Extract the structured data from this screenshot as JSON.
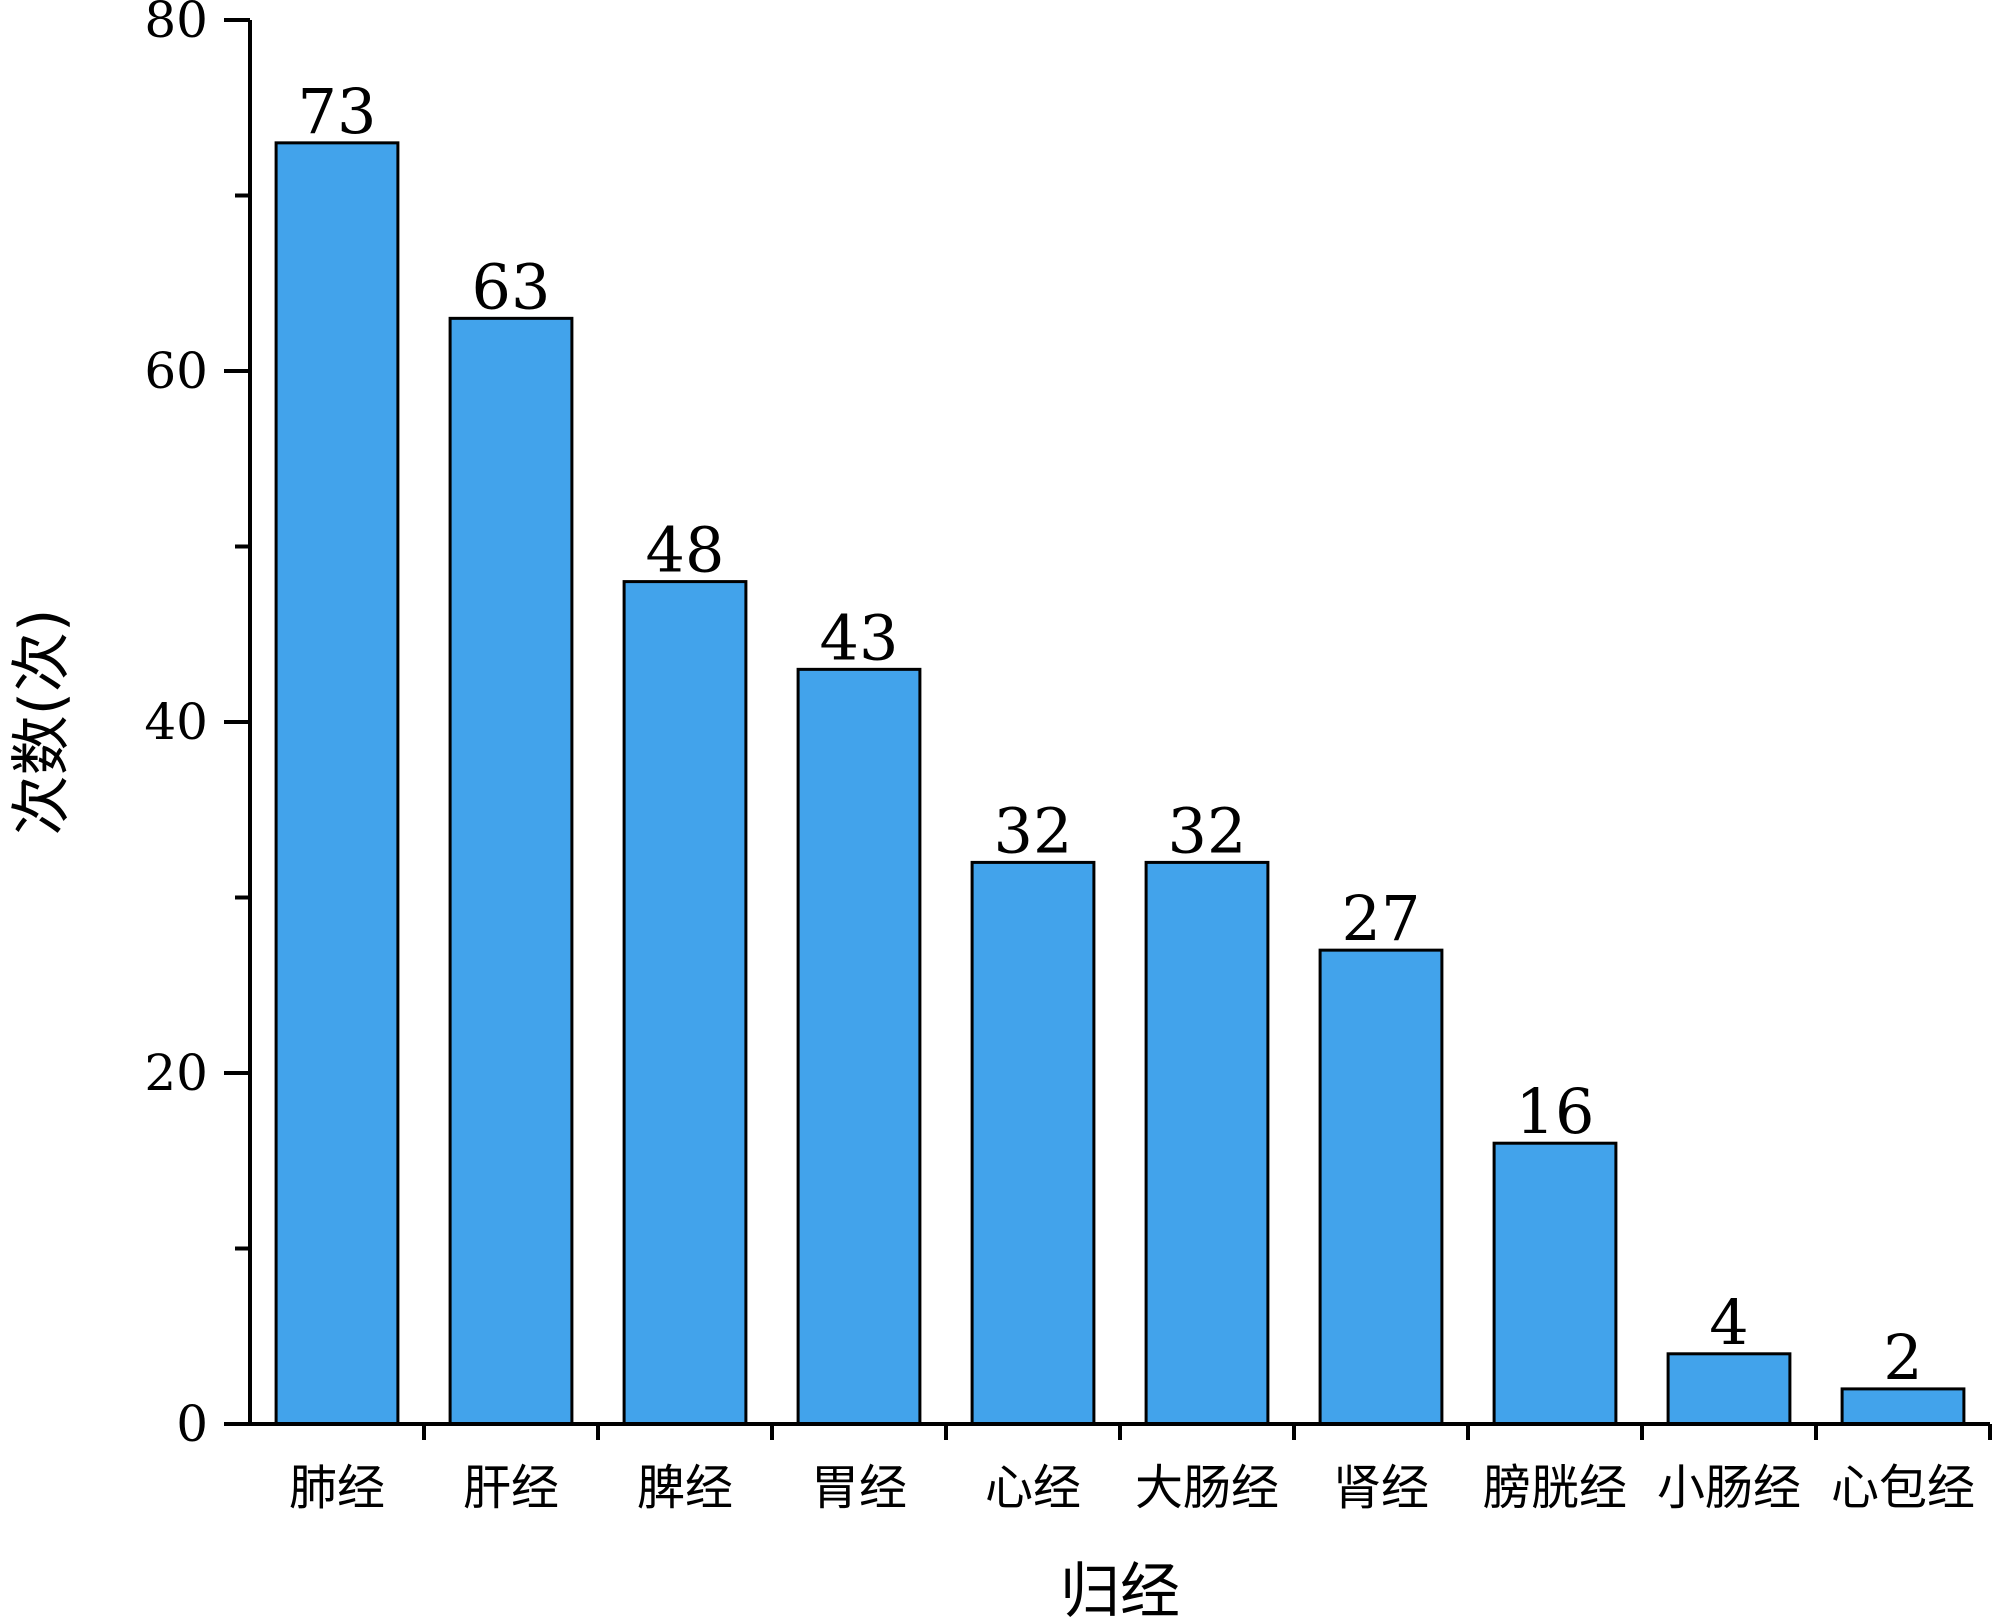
{
  "chart_data": {
    "type": "bar",
    "title": "",
    "xlabel": "归经",
    "ylabel": "次数(次)",
    "categories": [
      "肺经",
      "肝经",
      "脾经",
      "胃经",
      "心经",
      "大肠经",
      "肾经",
      "膀胱经",
      "小肠经",
      "心包经"
    ],
    "values": [
      73,
      63,
      48,
      43,
      32,
      32,
      27,
      16,
      4,
      2
    ],
    "ylim": [
      0,
      80
    ],
    "yticks": [
      0,
      20,
      40,
      60,
      80
    ],
    "data_labels": true,
    "grid": false,
    "bar_color": "#42A3EB",
    "edge_color": "#000000"
  }
}
